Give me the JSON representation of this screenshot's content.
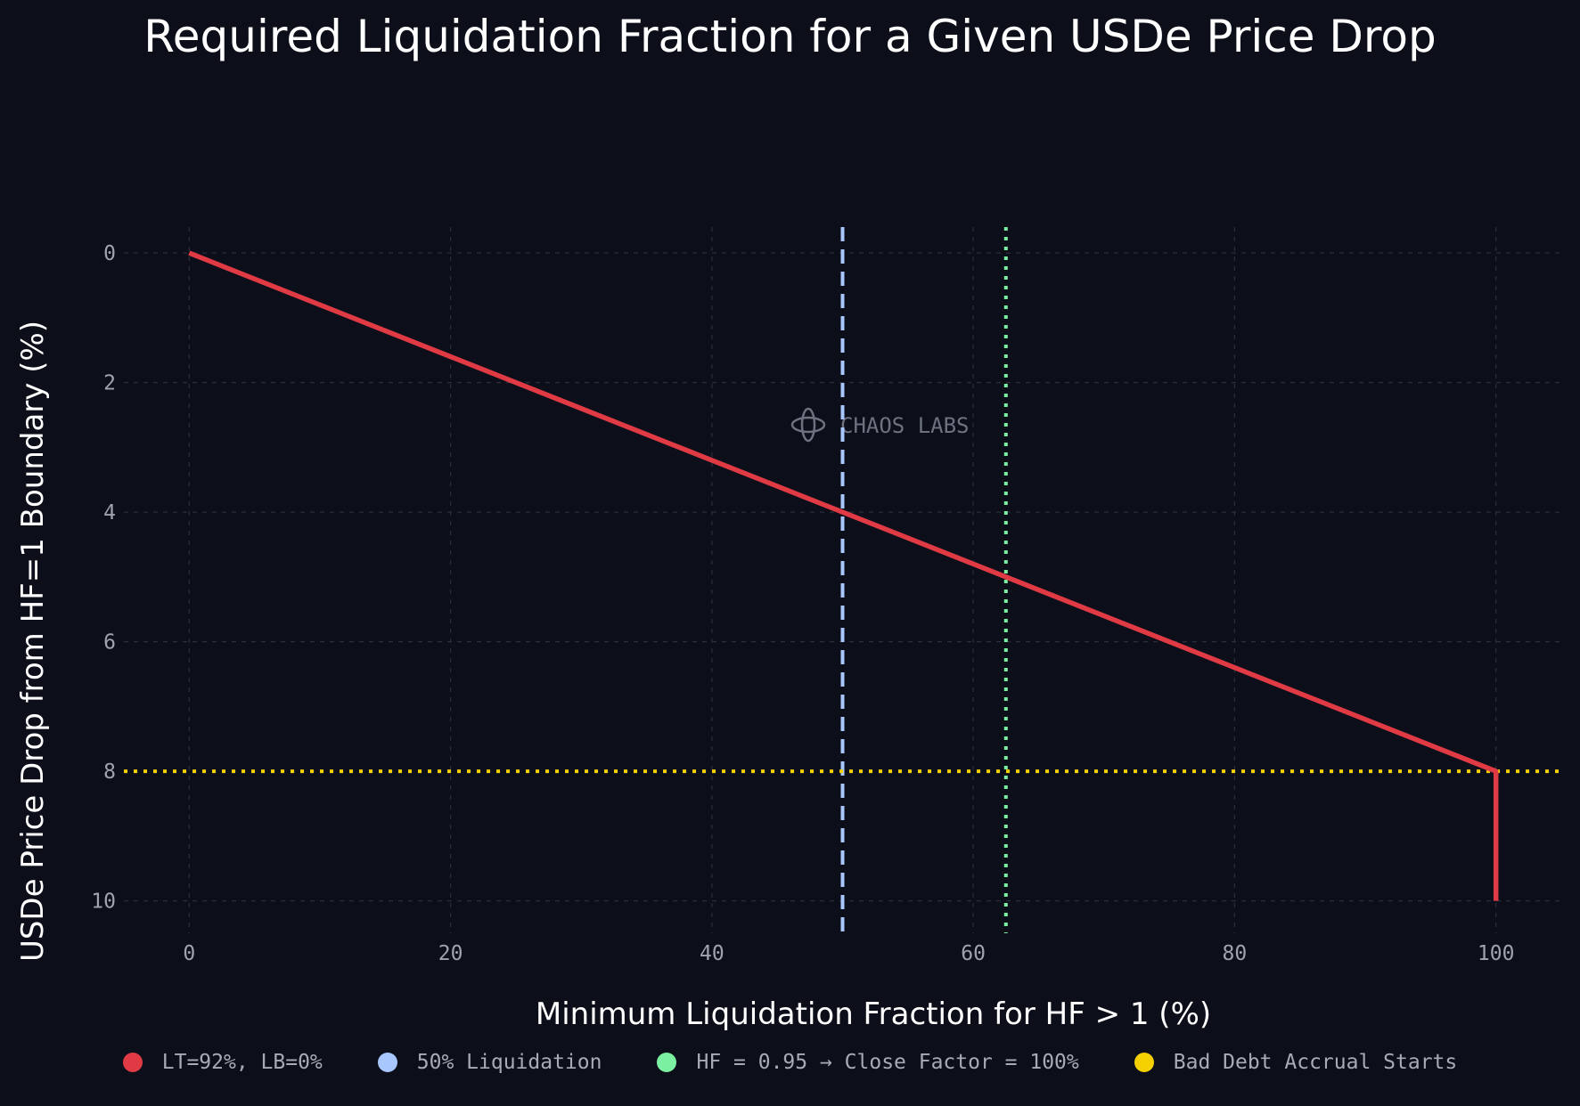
{
  "chart_data": {
    "type": "line",
    "title": "Required Liquidation Fraction for a Given USDe Price Drop",
    "xlabel": "Minimum Liquidation Fraction for HF > 1 (%)",
    "ylabel": "USDe Price Drop from HF=1 Boundary (%)",
    "xlim": [
      -5,
      105
    ],
    "ylim": [
      10.5,
      -0.4
    ],
    "y_inverted": true,
    "grid": true,
    "x_ticks": [
      0,
      20,
      40,
      60,
      80,
      100
    ],
    "y_ticks": [
      0,
      2,
      4,
      6,
      8,
      10
    ],
    "series": [
      {
        "name": "LT=92%, LB=0%",
        "color": "#e03a45",
        "style": "solid",
        "x": [
          0,
          100,
          100
        ],
        "y": [
          0,
          8,
          10
        ]
      }
    ],
    "reference_lines": [
      {
        "name": "50% Liquidation",
        "orientation": "vertical",
        "value": 50,
        "color": "#a9c7ff",
        "style": "dashed"
      },
      {
        "name": "HF = 0.95 → Close Factor = 100%",
        "orientation": "vertical",
        "value": 62.5,
        "color": "#7af0a0",
        "style": "dotted"
      },
      {
        "name": "Bad Debt Accrual Starts",
        "orientation": "horizontal",
        "value": 8,
        "color": "#f5d000",
        "style": "dotted"
      }
    ],
    "legend_position": "bottom",
    "watermark": "CHAOS LABS"
  }
}
